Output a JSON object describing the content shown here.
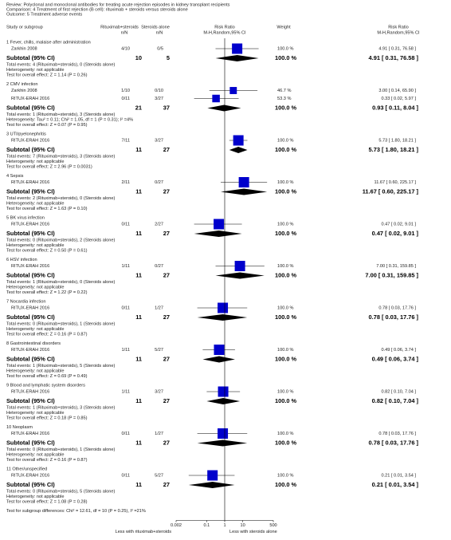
{
  "chart_data": {
    "type": "forest",
    "header": {
      "review": "Review:   Polyclonal and monoclonal antibodies for treating acute rejection episodes in kidney transplant recipients",
      "comparison": "Comparison:   4 Treatment of first rejection (B cell): rituximab + steroids versus steroids alone",
      "outcome": "Outcome:   5 Treatment adverse events"
    },
    "columns": {
      "study": "Study or subgroup",
      "exp": "Rituximab+steroids",
      "exp_sub": "n/N",
      "ctrl": "Steroids alone",
      "ctrl_sub": "n/N",
      "plot": "Risk Ratio",
      "plot_sub": "M-H,Random,95% CI",
      "weight": "Weight",
      "rr": "Risk Ratio",
      "rr_sub": "M-H,Random,95% CI"
    },
    "xscale": "log",
    "xlim": [
      0.002,
      500
    ],
    "xticks": [
      0.002,
      0.1,
      1,
      10,
      500
    ],
    "x_label_left": "Less with rituximab+steroids",
    "x_label_right": "Less with steroids alone",
    "color": "#0000cc",
    "groups": [
      {
        "title": "1 Fever, chills, malaise after administration",
        "studies": [
          {
            "name": "Zarkhin 2008",
            "exp": "4/10",
            "ctrl": "0/5",
            "weight": 100,
            "weight_label": "100.0 %",
            "rr": 4.91,
            "lo": 0.31,
            "hi": 76.58,
            "rr_label": "4.91 [ 0.31, 76.58 ]"
          }
        ],
        "subtotal": {
          "label": "Subtotal (95% CI)",
          "exp": 10,
          "ctrl": 5,
          "weight": 100,
          "weight_label": "100.0 %",
          "rr": 4.91,
          "lo": 0.31,
          "hi": 76.58,
          "rr_label": "4.91 [ 0.31, 76.58 ]"
        },
        "notes": [
          "Total events: 4 (Rituximab+steroids), 0 (Steroids alone)",
          "Heterogeneity: not applicable",
          "Test for overall effect: Z = 1.14 (P = 0.26)"
        ]
      },
      {
        "title": "2 CMV infection",
        "studies": [
          {
            "name": "Zarkhin 2008",
            "exp": "1/10",
            "ctrl": "0/10",
            "weight": 46.7,
            "weight_label": "46.7 %",
            "rr": 3.0,
            "lo": 0.14,
            "hi": 65.9,
            "rr_label": "3.00 [ 0.14, 65.90 ]"
          },
          {
            "name": "RITUX-ERAH 2016",
            "exp": "0/11",
            "ctrl": "3/27",
            "weight": 53.3,
            "weight_label": "53.3 %",
            "rr": 0.33,
            "lo": 0.02,
            "hi": 5.97,
            "rr_label": "0.33 [ 0.02, 5.97 ]"
          }
        ],
        "subtotal": {
          "label": "Subtotal (95% CI)",
          "exp": 21,
          "ctrl": 37,
          "weight": 100,
          "weight_label": "100.0 %",
          "rr": 0.93,
          "lo": 0.11,
          "hi": 8.04,
          "rr_label": "0.93 [ 0.11, 8.04 ]"
        },
        "notes": [
          "Total events: 1 (Rituximab+steroids), 3 (Steroids alone)",
          "Heterogeneity: Tau² = 0.11; Chi² = 1.05, df = 1 (P = 0.31); I² =4%",
          "Test for overall effect: Z = 0.07 (P = 0.95)"
        ]
      },
      {
        "title": "3 UTI/pyelonephritis",
        "studies": [
          {
            "name": "RITUX-ERAH 2016",
            "exp": "7/11",
            "ctrl": "3/27",
            "weight": 100,
            "weight_label": "100.0 %",
            "rr": 5.73,
            "lo": 1.8,
            "hi": 18.21,
            "rr_label": "5.73 [ 1.80, 18.21 ]"
          }
        ],
        "subtotal": {
          "label": "Subtotal (95% CI)",
          "exp": 11,
          "ctrl": 27,
          "weight": 100,
          "weight_label": "100.0 %",
          "rr": 5.73,
          "lo": 1.8,
          "hi": 18.21,
          "rr_label": "5.73 [ 1.80, 18.21 ]"
        },
        "notes": [
          "Total events: 7 (Rituximab+steroids), 3 (Steroids alone)",
          "Heterogeneity: not applicable",
          "Test for overall effect: Z = 2.96 (P = 0.0031)"
        ]
      },
      {
        "title": "4 Sepsis",
        "studies": [
          {
            "name": "RITUX-ERAH 2016",
            "exp": "2/11",
            "ctrl": "0/27",
            "weight": 100,
            "weight_label": "100.0 %",
            "rr": 11.67,
            "lo": 0.6,
            "hi": 225.17,
            "rr_label": "11.67 [ 0.60, 225.17 ]"
          }
        ],
        "subtotal": {
          "label": "Subtotal (95% CI)",
          "exp": 11,
          "ctrl": 27,
          "weight": 100,
          "weight_label": "100.0 %",
          "rr": 11.67,
          "lo": 0.6,
          "hi": 225.17,
          "rr_label": "11.67 [ 0.60, 225.17 ]"
        },
        "notes": [
          "Total events: 2 (Rituximab+steroids), 0 (Steroids alone)",
          "Heterogeneity: not applicable",
          "Test for overall effect: Z = 1.63 (P = 0.10)"
        ]
      },
      {
        "title": "5 BK virus infection",
        "studies": [
          {
            "name": "RITUX-ERAH 2016",
            "exp": "0/11",
            "ctrl": "2/27",
            "weight": 100,
            "weight_label": "100.0 %",
            "rr": 0.47,
            "lo": 0.02,
            "hi": 9.01,
            "rr_label": "0.47 [ 0.02, 9.01 ]"
          }
        ],
        "subtotal": {
          "label": "Subtotal (95% CI)",
          "exp": 11,
          "ctrl": 27,
          "weight": 100,
          "weight_label": "100.0 %",
          "rr": 0.47,
          "lo": 0.02,
          "hi": 9.01,
          "rr_label": "0.47 [ 0.02, 9.01 ]"
        },
        "notes": [
          "Total events: 0 (Rituximab+steroids), 2 (Steroids alone)",
          "Heterogeneity: not applicable",
          "Test for overall effect: Z = 0.50 (P = 0.61)"
        ]
      },
      {
        "title": "6 HSV infection",
        "studies": [
          {
            "name": "RITUX-ERAH 2016",
            "exp": "1/11",
            "ctrl": "0/27",
            "weight": 100,
            "weight_label": "100.0 %",
            "rr": 7.0,
            "lo": 0.31,
            "hi": 159.85,
            "rr_label": "7.00 [ 0.31, 159.85 ]"
          }
        ],
        "subtotal": {
          "label": "Subtotal (95% CI)",
          "exp": 11,
          "ctrl": 27,
          "weight": 100,
          "weight_label": "100.0 %",
          "rr": 7.0,
          "lo": 0.31,
          "hi": 159.85,
          "rr_label": "7.00 [ 0.31, 159.85 ]"
        },
        "notes": [
          "Total events: 1 (Rituximab+steroids), 0 (Steroids alone)",
          "Heterogeneity: not applicable",
          "Test for overall effect: Z = 1.22 (P = 0.22)"
        ]
      },
      {
        "title": "7 Nocardia infection",
        "studies": [
          {
            "name": "RITUX-ERAH 2016",
            "exp": "0/11",
            "ctrl": "1/27",
            "weight": 100,
            "weight_label": "100.0 %",
            "rr": 0.78,
            "lo": 0.03,
            "hi": 17.76,
            "rr_label": "0.78 [ 0.03, 17.76 ]"
          }
        ],
        "subtotal": {
          "label": "Subtotal (95% CI)",
          "exp": 11,
          "ctrl": 27,
          "weight": 100,
          "weight_label": "100.0 %",
          "rr": 0.78,
          "lo": 0.03,
          "hi": 17.76,
          "rr_label": "0.78 [ 0.03, 17.76 ]"
        },
        "notes": [
          "Total events: 0 (Rituximab+steroids), 1 (Steroids alone)",
          "Heterogeneity: not applicable",
          "Test for overall effect: Z = 0.16 (P = 0.87)"
        ]
      },
      {
        "title": "8 Gastrointestinal disorders",
        "studies": [
          {
            "name": "RITUX-ERAH 2016",
            "exp": "1/11",
            "ctrl": "5/27",
            "weight": 100,
            "weight_label": "100.0 %",
            "rr": 0.49,
            "lo": 0.06,
            "hi": 3.74,
            "rr_label": "0.49 [ 0.06, 3.74 ]"
          }
        ],
        "subtotal": {
          "label": "Subtotal (95% CI)",
          "exp": 11,
          "ctrl": 27,
          "weight": 100,
          "weight_label": "100.0 %",
          "rr": 0.49,
          "lo": 0.06,
          "hi": 3.74,
          "rr_label": "0.49 [ 0.06, 3.74 ]"
        },
        "notes": [
          "Total events: 1 (Rituximab+steroids), 5 (Steroids alone)",
          "Heterogeneity: not applicable",
          "Test for overall effect: Z = 0.69 (P = 0.49)"
        ]
      },
      {
        "title": "9 Blood and lymphatic system disorders",
        "studies": [
          {
            "name": "RITUX-ERAH 2016",
            "exp": "1/11",
            "ctrl": "3/27",
            "weight": 100,
            "weight_label": "100.0 %",
            "rr": 0.82,
            "lo": 0.1,
            "hi": 7.04,
            "rr_label": "0.82 [ 0.10, 7.04 ]"
          }
        ],
        "subtotal": {
          "label": "Subtotal (95% CI)",
          "exp": 11,
          "ctrl": 27,
          "weight": 100,
          "weight_label": "100.0 %",
          "rr": 0.82,
          "lo": 0.1,
          "hi": 7.04,
          "rr_label": "0.82 [ 0.10, 7.04 ]"
        },
        "notes": [
          "Total events: 1 (Rituximab+steroids), 3 (Steroids alone)",
          "Heterogeneity: not applicable",
          "Test for overall effect: Z = 0.18 (P = 0.85)"
        ]
      },
      {
        "title": "10 Neoplasm",
        "studies": [
          {
            "name": "RITUX-ERAH 2016",
            "exp": "0/11",
            "ctrl": "1/27",
            "weight": 100,
            "weight_label": "100.0 %",
            "rr": 0.78,
            "lo": 0.03,
            "hi": 17.76,
            "rr_label": "0.78 [ 0.03, 17.76 ]"
          }
        ],
        "subtotal": {
          "label": "Subtotal (95% CI)",
          "exp": 11,
          "ctrl": 27,
          "weight": 100,
          "weight_label": "100.0 %",
          "rr": 0.78,
          "lo": 0.03,
          "hi": 17.76,
          "rr_label": "0.78 [ 0.03, 17.76 ]"
        },
        "notes": [
          "Total events: 0 (Rituximab+steroids), 1 (Steroids alone)",
          "Heterogeneity: not applicable",
          "Test for overall effect: Z = 0.16 (P = 0.87)"
        ]
      },
      {
        "title": "11 Other/unspecified",
        "studies": [
          {
            "name": "RITUX-ERAH 2016",
            "exp": "0/11",
            "ctrl": "5/27",
            "weight": 100,
            "weight_label": "100.0 %",
            "rr": 0.21,
            "lo": 0.01,
            "hi": 3.54,
            "rr_label": "0.21 [ 0.01, 3.54 ]"
          }
        ],
        "subtotal": {
          "label": "Subtotal (95% CI)",
          "exp": 11,
          "ctrl": 27,
          "weight": 100,
          "weight_label": "100.0 %",
          "rr": 0.21,
          "lo": 0.01,
          "hi": 3.54,
          "rr_label": "0.21 [ 0.01, 3.54 ]"
        },
        "notes": [
          "Total events: 0 (Rituximab+steroids), 5 (Steroids alone)",
          "Heterogeneity: not applicable",
          "Test for overall effect: Z = 1.08 (P = 0.28)"
        ]
      }
    ],
    "subgroup_test": "Test for subgroup differences: Chi² = 12.61, df = 10 (P = 0.25), I² =21%"
  }
}
